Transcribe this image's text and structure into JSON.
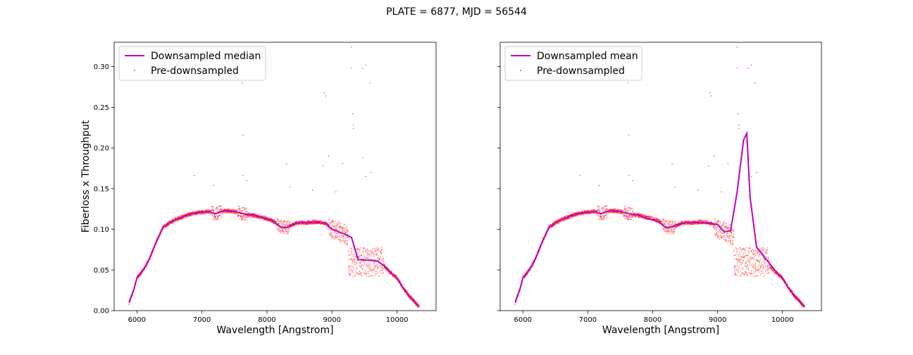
{
  "figure": {
    "suptitle": "PLATE = 6877, MJD = 56544"
  },
  "colors": {
    "downsampled": "#bf00bf",
    "predownsampled": "#ff0000",
    "axes": "#000000",
    "background": "#ffffff"
  },
  "chart_data": [
    {
      "type": "line",
      "xlabel": "Wavelength [Angstrom]",
      "ylabel": "Fiberloss x Throughput",
      "xlim": [
        5650,
        10600
      ],
      "ylim": [
        0,
        0.33
      ],
      "xticks": [
        6000,
        7000,
        8000,
        9000,
        10000
      ],
      "yticks": [
        0.0,
        0.05,
        0.1,
        0.15,
        0.2,
        0.25,
        0.3
      ],
      "xtick_labels": [
        "6000",
        "7000",
        "8000",
        "9000",
        "10000"
      ],
      "ytick_labels": [
        "0.00",
        "0.05",
        "0.10",
        "0.15",
        "0.20",
        "0.25",
        "0.30"
      ],
      "legend": {
        "placement": "top-left",
        "entries": [
          "Downsampled median",
          "Pre-downsampled"
        ]
      },
      "series": [
        {
          "name": "Downsampled median",
          "style": "line",
          "x": [
            5880,
            5950,
            6000,
            6100,
            6200,
            6300,
            6400,
            6500,
            6600,
            6700,
            6800,
            6900,
            7000,
            7100,
            7200,
            7300,
            7400,
            7500,
            7600,
            7700,
            7800,
            7900,
            8000,
            8100,
            8200,
            8300,
            8400,
            8500,
            8600,
            8700,
            8800,
            8900,
            9000,
            9100,
            9200,
            9300,
            9400,
            9500,
            9600,
            9700,
            9800,
            9900,
            10000,
            10100,
            10200,
            10300,
            10340
          ],
          "y": [
            0.01,
            0.025,
            0.04,
            0.05,
            0.065,
            0.085,
            0.102,
            0.108,
            0.112,
            0.115,
            0.118,
            0.12,
            0.121,
            0.122,
            0.119,
            0.122,
            0.123,
            0.122,
            0.12,
            0.118,
            0.117,
            0.115,
            0.113,
            0.11,
            0.103,
            0.102,
            0.106,
            0.108,
            0.108,
            0.109,
            0.109,
            0.107,
            0.1,
            0.097,
            0.094,
            0.09,
            0.063,
            0.062,
            0.062,
            0.061,
            0.055,
            0.047,
            0.04,
            0.027,
            0.017,
            0.008,
            0.005
          ]
        },
        {
          "name": "Pre-downsampled",
          "style": "scatter",
          "outliers": [
            [
              7615,
              0.28
            ],
            [
              7630,
              0.216
            ],
            [
              8880,
              0.268
            ],
            [
              8900,
              0.264
            ],
            [
              9300,
              0.324
            ],
            [
              9320,
              0.242
            ],
            [
              9300,
              0.298
            ],
            [
              9330,
              0.228
            ],
            [
              9520,
              0.302
            ],
            [
              9580,
              0.28
            ],
            [
              9470,
              0.298
            ],
            [
              8860,
              0.178
            ],
            [
              9330,
              0.224
            ],
            [
              8950,
              0.19
            ],
            [
              9480,
              0.188
            ],
            [
              9600,
              0.17
            ],
            [
              6880,
              0.166
            ],
            [
              7630,
              0.166
            ],
            [
              8300,
              0.18
            ],
            [
              9160,
              0.181
            ],
            [
              8700,
              0.148
            ],
            [
              9060,
              0.146
            ],
            [
              8350,
              0.152
            ],
            [
              7180,
              0.154
            ],
            [
              7690,
              0.16
            ],
            [
              9520,
              0.165
            ]
          ]
        }
      ]
    },
    {
      "type": "line",
      "xlabel": "Wavelength [Angstrom]",
      "ylabel": "",
      "xlim": [
        5650,
        10600
      ],
      "ylim": [
        0,
        0.33
      ],
      "xticks": [
        6000,
        7000,
        8000,
        9000,
        10000
      ],
      "yticks": [
        0.0,
        0.05,
        0.1,
        0.15,
        0.2,
        0.25,
        0.3
      ],
      "xtick_labels": [
        "6000",
        "7000",
        "8000",
        "9000",
        "10000"
      ],
      "ytick_labels": [],
      "legend": {
        "placement": "top-left",
        "entries": [
          "Downsampled mean",
          "Pre-downsampled"
        ]
      },
      "series": [
        {
          "name": "Downsampled mean",
          "style": "line",
          "x": [
            5880,
            5950,
            6000,
            6100,
            6200,
            6300,
            6400,
            6500,
            6600,
            6700,
            6800,
            6900,
            7000,
            7100,
            7200,
            7300,
            7400,
            7500,
            7600,
            7700,
            7800,
            7900,
            8000,
            8100,
            8200,
            8300,
            8400,
            8500,
            8600,
            8700,
            8800,
            8900,
            9000,
            9100,
            9200,
            9300,
            9400,
            9450,
            9500,
            9600,
            9700,
            9800,
            9900,
            10000,
            10100,
            10200,
            10300,
            10340
          ],
          "y": [
            0.01,
            0.025,
            0.04,
            0.05,
            0.065,
            0.085,
            0.102,
            0.108,
            0.112,
            0.115,
            0.118,
            0.12,
            0.121,
            0.122,
            0.119,
            0.122,
            0.123,
            0.122,
            0.12,
            0.118,
            0.117,
            0.113,
            0.112,
            0.109,
            0.102,
            0.103,
            0.106,
            0.108,
            0.108,
            0.109,
            0.108,
            0.107,
            0.106,
            0.097,
            0.098,
            0.145,
            0.21,
            0.218,
            0.14,
            0.078,
            0.068,
            0.058,
            0.048,
            0.04,
            0.027,
            0.017,
            0.008,
            0.005
          ]
        },
        {
          "name": "Pre-downsampled",
          "style": "scatter",
          "outliers": [
            [
              7615,
              0.28
            ],
            [
              7630,
              0.216
            ],
            [
              8880,
              0.268
            ],
            [
              8900,
              0.264
            ],
            [
              9300,
              0.324
            ],
            [
              9320,
              0.242
            ],
            [
              9300,
              0.298
            ],
            [
              9330,
              0.228
            ],
            [
              9520,
              0.302
            ],
            [
              9580,
              0.28
            ],
            [
              9470,
              0.298
            ],
            [
              8860,
              0.178
            ],
            [
              9330,
              0.224
            ],
            [
              8950,
              0.19
            ],
            [
              9480,
              0.188
            ],
            [
              9600,
              0.17
            ],
            [
              6880,
              0.166
            ],
            [
              7630,
              0.166
            ],
            [
              8300,
              0.18
            ],
            [
              9160,
              0.181
            ],
            [
              8700,
              0.148
            ],
            [
              9060,
              0.146
            ],
            [
              8350,
              0.152
            ],
            [
              7180,
              0.154
            ],
            [
              7690,
              0.16
            ],
            [
              9520,
              0.165
            ]
          ]
        }
      ]
    }
  ]
}
